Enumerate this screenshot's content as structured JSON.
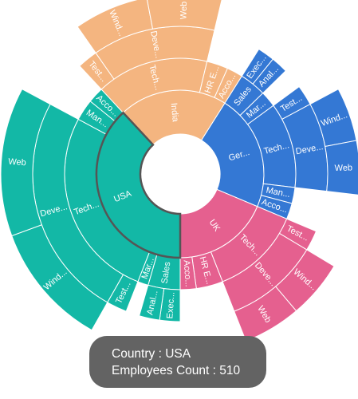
{
  "chart_data": {
    "type": "sunburst",
    "colors": {
      "USA": "#13b8a6",
      "UK": "#e5608f",
      "Germany": "#3478d4",
      "India": "#f4b580"
    },
    "highlight": {
      "color": "#555555",
      "node": "USA"
    },
    "nodes": [
      {
        "name": "USA",
        "label": "USA",
        "value": 510,
        "children": [
          {
            "name": "Sales",
            "label": "Sales",
            "value": 60,
            "children": [
              {
                "name": "Executive",
                "label": "Exec...",
                "value": 30
              },
              {
                "name": "Analyst",
                "label": "Anal...",
                "value": 30
              }
            ]
          },
          {
            "name": "Marketing",
            "label": "Mar...",
            "value": 20
          },
          {
            "name": "Technical",
            "label": "Tech...",
            "value": 360,
            "children": [
              {
                "name": "Testers",
                "label": "Test...",
                "value": 30
              },
              {
                "name": "Developers",
                "label": "Deve...",
                "value": 330,
                "children": [
                  {
                    "name": "Windows",
                    "label": "Wind...",
                    "value": 150
                  },
                  {
                    "name": "Web",
                    "label": "Web",
                    "value": 180
                  }
                ]
              }
            ]
          },
          {
            "name": "Management",
            "label": "Man...",
            "value": 40
          },
          {
            "name": "Accounts",
            "label": "Acco...",
            "value": 30
          }
        ]
      },
      {
        "name": "India",
        "label": "India",
        "value": 280,
        "children": [
          {
            "name": "Technical",
            "label": "Tech...",
            "value": 210,
            "children": [
              {
                "name": "Testers",
                "label": "Test...",
                "value": 30
              },
              {
                "name": "Developers",
                "label": "Deve...",
                "value": 180,
                "children": [
                  {
                    "name": "Windows",
                    "label": "Wind...",
                    "value": 90
                  },
                  {
                    "name": "Web",
                    "label": "Web",
                    "value": 90
                  }
                ]
              }
            ]
          },
          {
            "name": "HR Executives",
            "label": "HR E...",
            "value": 40
          },
          {
            "name": "Accounts",
            "label": "Acco...",
            "value": 30
          }
        ]
      },
      {
        "name": "Germany",
        "label": "Ger...",
        "value": 300,
        "children": [
          {
            "name": "Sales",
            "label": "Sales",
            "value": 50,
            "children": [
              {
                "name": "Executive",
                "label": "Exec...",
                "value": 25
              },
              {
                "name": "Analyst",
                "label": "Anal...",
                "value": 25
              }
            ]
          },
          {
            "name": "Marketing",
            "label": "Mar...",
            "value": 30
          },
          {
            "name": "Technical",
            "label": "Tech...",
            "value": 160,
            "children": [
              {
                "name": "Testers",
                "label": "Test...",
                "value": 30
              },
              {
                "name": "Developers",
                "label": "Deve...",
                "value": 130,
                "children": [
                  {
                    "name": "Windows",
                    "label": "Wind...",
                    "value": 65
                  },
                  {
                    "name": "Web",
                    "label": "Web",
                    "value": 65
                  }
                ]
              }
            ]
          },
          {
            "name": "Management",
            "label": "Man...",
            "value": 30
          },
          {
            "name": "Accounts",
            "label": "Acco...",
            "value": 30
          }
        ]
      },
      {
        "name": "UK",
        "label": "UK",
        "value": 250,
        "children": [
          {
            "name": "Technical",
            "label": "Tech...",
            "value": 170,
            "children": [
              {
                "name": "Testers",
                "label": "Test...",
                "value": 30
              },
              {
                "name": "Developers",
                "label": "Deve...",
                "value": 140,
                "children": [
                  {
                    "name": "Windows",
                    "label": "Wind...",
                    "value": 70
                  },
                  {
                    "name": "Web",
                    "label": "Web",
                    "value": 70
                  }
                ]
              }
            ]
          },
          {
            "name": "HR Executives",
            "label": "HR E...",
            "value": 50
          },
          {
            "name": "Accounts",
            "label": "Acco...",
            "value": 30
          }
        ]
      }
    ]
  },
  "tooltip": {
    "line1": "Country : USA",
    "line2": "Employees Count : 510"
  }
}
